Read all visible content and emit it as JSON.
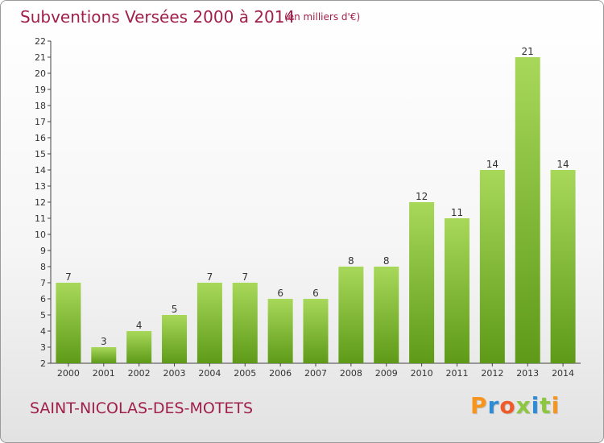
{
  "title": "Subventions Versées 2000 à 2014",
  "units": "(en milliers d'€)",
  "commune": "SAINT-NICOLAS-DES-MOTETS",
  "logo": [
    "P",
    "r",
    "o",
    "x",
    "i",
    "t",
    "i"
  ],
  "logo_colors": [
    "#f7941d",
    "#2e8bd6",
    "#f05a28",
    "#8dc63f",
    "#2e8bd6",
    "#8dc63f",
    "#f7941d"
  ],
  "colors": {
    "bar_light": "#a8d85a",
    "bar_dark": "#5e9a18",
    "text_accent": "#a0204a"
  },
  "chart_data": {
    "type": "bar",
    "title": "Subventions Versées 2000 à 2014",
    "categories": [
      "2000",
      "2001",
      "2002",
      "2003",
      "2004",
      "2005",
      "2006",
      "2007",
      "2008",
      "2009",
      "2010",
      "2011",
      "2012",
      "2013",
      "2014"
    ],
    "values": [
      7,
      3,
      4,
      5,
      7,
      7,
      6,
      6,
      8,
      8,
      12,
      11,
      14,
      21,
      14
    ],
    "ylim": [
      2,
      22
    ],
    "yticks": [
      2,
      3,
      4,
      5,
      6,
      7,
      8,
      9,
      10,
      11,
      12,
      13,
      14,
      15,
      16,
      17,
      18,
      19,
      20,
      21,
      22
    ],
    "grid": false,
    "legend": "none"
  }
}
